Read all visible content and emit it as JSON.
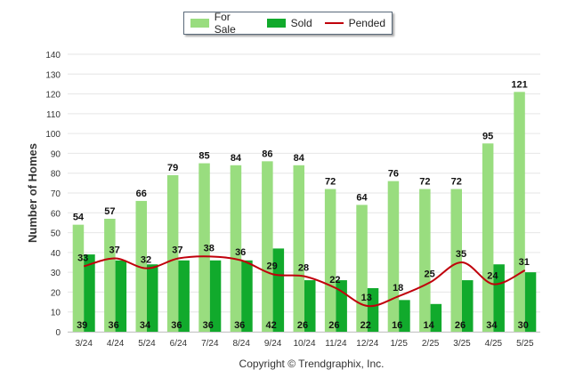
{
  "chart_data": {
    "type": "bar",
    "categories": [
      "3/24",
      "4/24",
      "5/24",
      "6/24",
      "7/24",
      "8/24",
      "9/24",
      "10/24",
      "11/24",
      "12/24",
      "1/25",
      "2/25",
      "3/25",
      "4/25",
      "5/25"
    ],
    "series": [
      {
        "name": "For Sale",
        "type": "bar",
        "color": "#99dd7f",
        "values": [
          54,
          57,
          66,
          79,
          85,
          84,
          86,
          84,
          72,
          64,
          76,
          72,
          72,
          95,
          121
        ]
      },
      {
        "name": "Sold",
        "type": "bar",
        "color": "#11aa2c",
        "values": [
          39,
          36,
          34,
          36,
          36,
          36,
          42,
          26,
          26,
          22,
          16,
          14,
          26,
          34,
          30
        ]
      },
      {
        "name": "Pended",
        "type": "line",
        "color": "#c0000b",
        "values": [
          33,
          37,
          32,
          37,
          38,
          36,
          29,
          28,
          22,
          13,
          18,
          25,
          35,
          24,
          31
        ]
      }
    ],
    "ylabel": "Number of Homes",
    "xlabel": "",
    "ylim": [
      0,
      140
    ],
    "yticks": [
      0,
      10,
      20,
      30,
      40,
      50,
      60,
      70,
      80,
      90,
      100,
      110,
      120,
      130,
      140
    ],
    "grid": true,
    "legend_position": "top-center",
    "footer": "Copyright © Trendgraphix, Inc."
  }
}
